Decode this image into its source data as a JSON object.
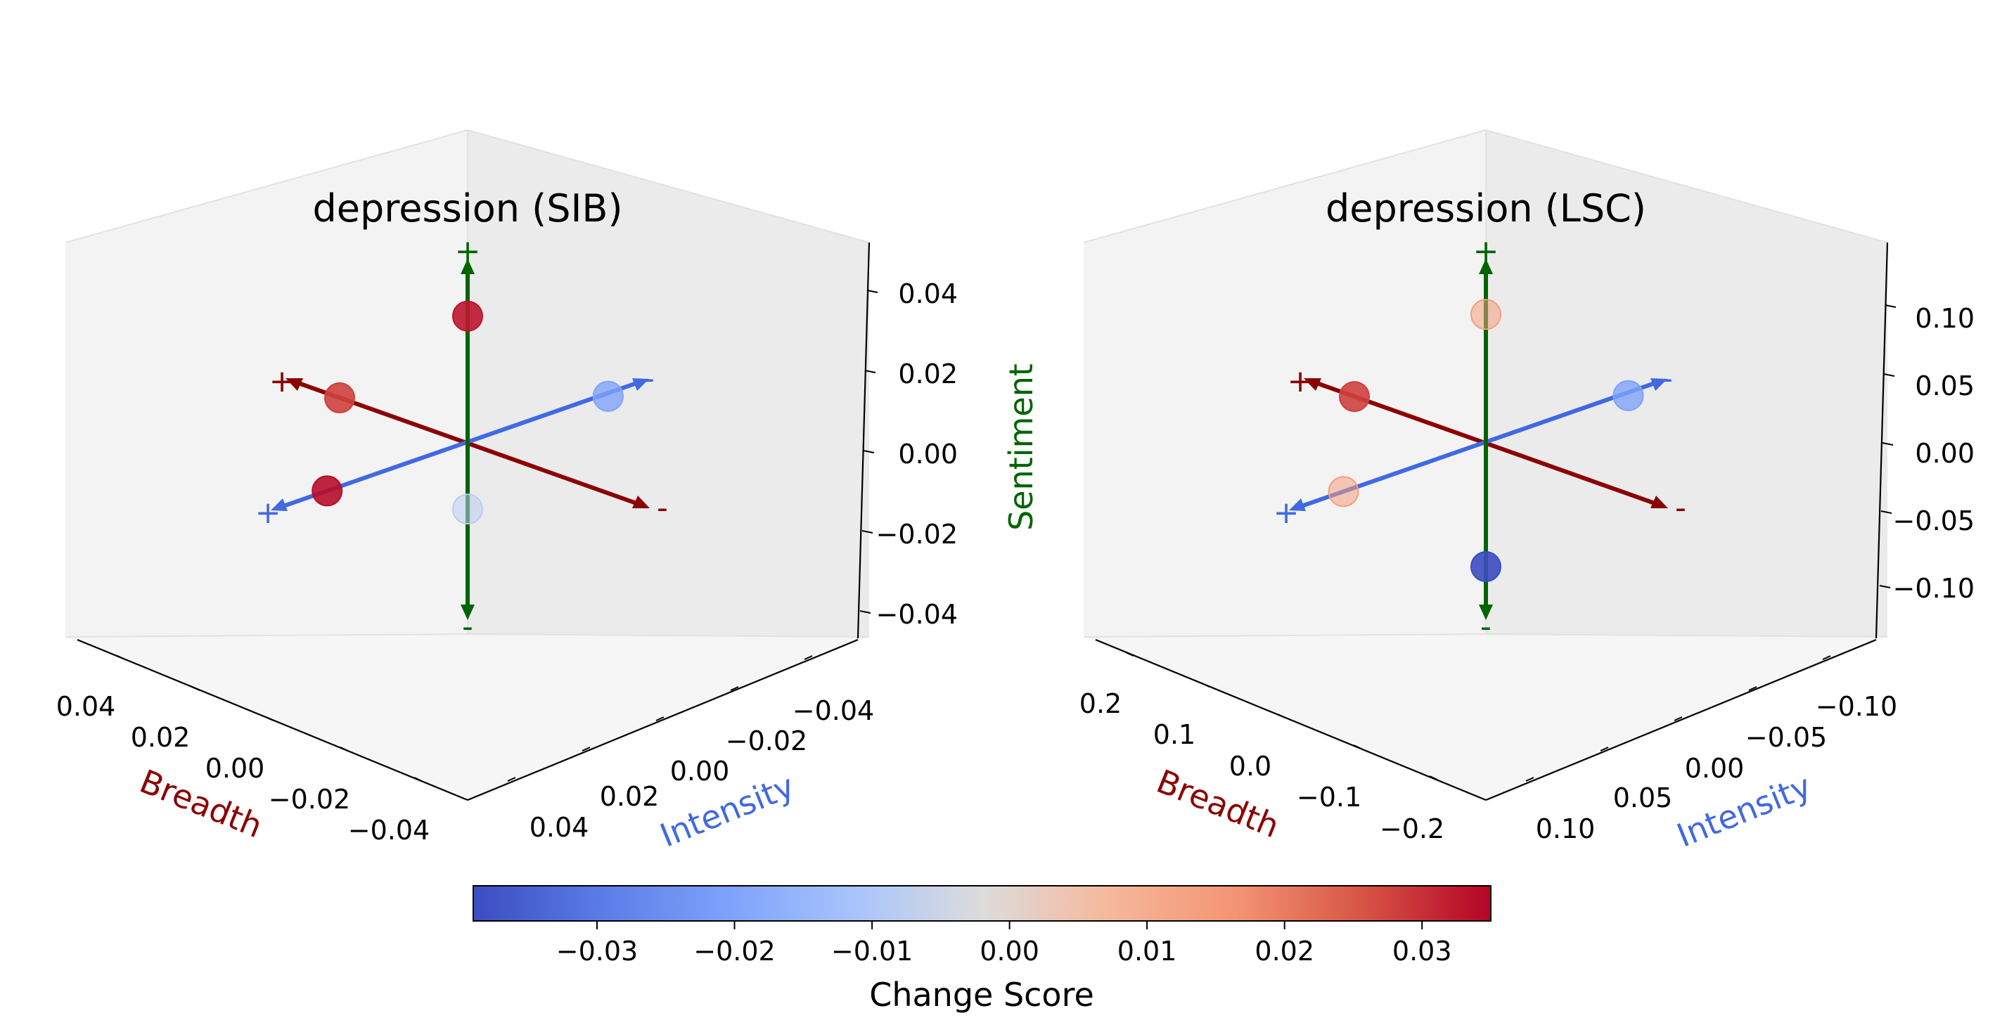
{
  "colors": {
    "breadth": "#8b0000",
    "intensity": "#4169e1",
    "sentiment": "#006400",
    "pane_back": "#ebebeb",
    "pane_side": "#f2f2f2",
    "pane_floor": "#f4f4f4"
  },
  "colorbar": {
    "label": "Change Score",
    "vmin": -0.039,
    "vmax": 0.035,
    "ticks": [
      "−0.03",
      "−0.02",
      "−0.01",
      "0.00",
      "0.01",
      "0.02",
      "0.03"
    ],
    "tick_values": [
      -0.03,
      -0.02,
      -0.01,
      0.0,
      0.01,
      0.02,
      0.03
    ],
    "colormap": "coolwarm"
  },
  "chart_data": [
    {
      "type": "scatter",
      "title": "depression (SIB)",
      "xlabel": "Breadth",
      "ylabel": "Intensity",
      "zlabel": "",
      "xlim": [
        -0.05,
        0.05
      ],
      "ylim": [
        -0.05,
        0.05
      ],
      "zlim": [
        -0.05,
        0.05
      ],
      "x_ticks": [
        "0.04",
        "0.02",
        "0.00",
        "−0.02",
        "−0.04"
      ],
      "x_tick_values": [
        0.04,
        0.02,
        0.0,
        -0.02,
        -0.04
      ],
      "y_ticks": [
        "−0.04",
        "−0.02",
        "0.00",
        "0.02",
        "0.04"
      ],
      "y_tick_values": [
        -0.04,
        -0.02,
        0.0,
        0.02,
        0.04
      ],
      "z_ticks": [
        "0.04",
        "0.02",
        "0.00",
        "−0.02",
        "−0.04"
      ],
      "z_tick_values": [
        0.04,
        0.02,
        0.0,
        -0.02,
        -0.04
      ],
      "axis_signs": {
        "breadth_pos": "+",
        "breadth_neg": "-",
        "intensity_pos": "+",
        "intensity_neg": "-",
        "sentiment_pos": "+",
        "sentiment_neg": "-"
      },
      "points": [
        {
          "axis": "sentiment",
          "sign": "+",
          "x": 0,
          "y": 0,
          "z": 0.037,
          "score": 0.033
        },
        {
          "axis": "sentiment",
          "sign": "-",
          "x": 0,
          "y": 0,
          "z": -0.019,
          "score": -0.008
        },
        {
          "axis": "breadth",
          "sign": "+",
          "x": 0.037,
          "y": 0,
          "z": 0,
          "score": 0.028
        },
        {
          "axis": "breadth",
          "sign": "-",
          "x": 0,
          "y": -0.037,
          "z": 0,
          "score": -0.02
        },
        {
          "axis": "intensity",
          "sign": "+",
          "x": 0,
          "y": 0.037,
          "z": 0,
          "score": 0.034
        },
        {
          "axis": "intensity",
          "sign": "-",
          "x": 0,
          "y": -0.037,
          "z": 0,
          "score": -0.02
        }
      ]
    },
    {
      "type": "scatter",
      "title": "depression (LSC)",
      "xlabel": "Breadth",
      "ylabel": "Intensity",
      "zlabel": "Sentiment",
      "xlim": [
        -0.25,
        0.25
      ],
      "ylim": [
        -0.14,
        0.14
      ],
      "zlim": [
        -0.14,
        0.14
      ],
      "x_ticks": [
        "0.2",
        "0.1",
        "0.0",
        "−0.1",
        "−0.2"
      ],
      "x_tick_values": [
        0.2,
        0.1,
        0.0,
        -0.1,
        -0.2
      ],
      "y_ticks": [
        "−0.10",
        "−0.05",
        "0.00",
        "0.05",
        "0.10"
      ],
      "y_tick_values": [
        -0.1,
        -0.05,
        0.0,
        0.05,
        0.1
      ],
      "z_ticks": [
        "0.10",
        "0.05",
        "0.00",
        "−0.05",
        "−0.10"
      ],
      "z_tick_values": [
        0.1,
        0.05,
        0.0,
        -0.05,
        -0.1
      ],
      "axis_signs": {
        "breadth_pos": "+",
        "breadth_neg": "-",
        "intensity_pos": "+",
        "intensity_neg": "-",
        "sentiment_pos": "+",
        "sentiment_neg": "-"
      },
      "points": [
        {
          "axis": "sentiment",
          "sign": "+",
          "x": 0,
          "y": 0,
          "z": 0.105,
          "score": 0.014
        },
        {
          "axis": "sentiment",
          "sign": "-",
          "x": 0,
          "y": 0,
          "z": -0.1,
          "score": -0.039
        },
        {
          "axis": "breadth",
          "sign": "+",
          "x": 0.19,
          "y": 0,
          "z": 0,
          "score": 0.028
        },
        {
          "axis": "breadth",
          "sign": "-",
          "x": 0,
          "y": -0.105,
          "z": 0,
          "score": -0.02
        },
        {
          "axis": "intensity",
          "sign": "+",
          "x": 0,
          "y": 0.105,
          "z": 0,
          "score": 0.014
        },
        {
          "axis": "intensity",
          "sign": "-",
          "x": 0,
          "y": -0.105,
          "z": 0,
          "score": -0.02
        }
      ]
    }
  ]
}
